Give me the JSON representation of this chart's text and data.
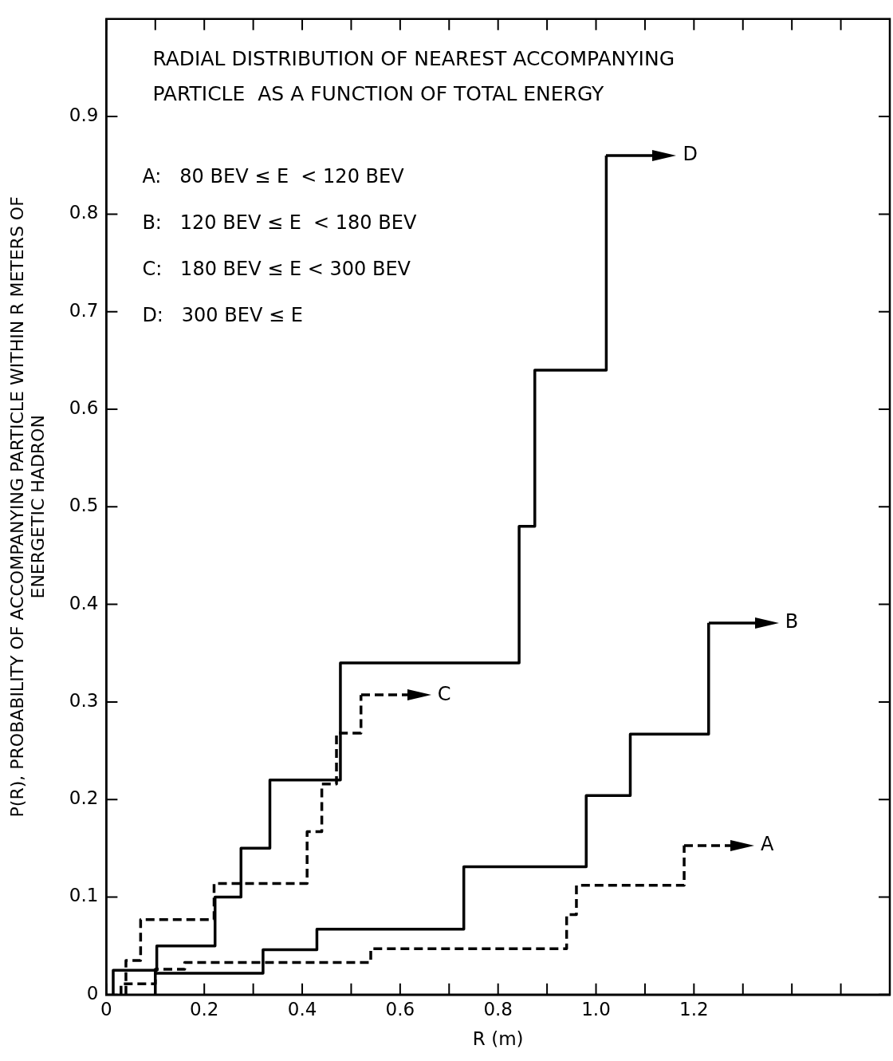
{
  "chart_data": {
    "type": "step",
    "title": "RADIAL DISTRIBUTION OF NEAREST ACCOMPANYING\nPARTICLE  AS A FUNCTION OF TOTAL ENERGY",
    "xlabel": "R (m)",
    "ylabel": "P(R), PROBABILITY OF ACCOMPANYING PARTICLE WITHIN R METERS OF\nENERGETIC HADRON",
    "annotations": [
      "A:   80 BEV ≤ E  < 120 BEV",
      "B:   120 BEV ≤ E  < 180 BEV",
      "C:   180 BEV ≤ E < 300 BEV",
      "D:   300 BEV ≤ E"
    ],
    "series": [
      {
        "name": "A",
        "color": "#000000",
        "line_style": "dashed",
        "x": [
          0.03,
          0.03,
          0.1,
          0.16,
          0.54,
          0.94,
          0.96,
          1.18
        ],
        "values": [
          0,
          0.011,
          0.026,
          0.033,
          0.047,
          0.082,
          0.112,
          0.153
        ]
      },
      {
        "name": "B",
        "color": "#000000",
        "line_style": "solid",
        "x": [
          0.1,
          0.1,
          0.32,
          0.43,
          0.73,
          0.98,
          1.07,
          1.23
        ],
        "values": [
          0,
          0.022,
          0.046,
          0.067,
          0.131,
          0.204,
          0.267,
          0.381
        ]
      },
      {
        "name": "C",
        "color": "#000000",
        "line_style": "dashed",
        "x": [
          0.04,
          0.04,
          0.07,
          0.22,
          0.41,
          0.44,
          0.47,
          0.52
        ],
        "values": [
          0,
          0.035,
          0.077,
          0.114,
          0.167,
          0.216,
          0.268,
          0.307
        ]
      },
      {
        "name": "D",
        "color": "#000000",
        "line_style": "solid",
        "x": [
          0.014,
          0.014,
          0.103,
          0.222,
          0.275,
          0.334,
          0.478,
          0.843,
          0.875,
          1.021
        ],
        "values": [
          0,
          0.025,
          0.05,
          0.1,
          0.15,
          0.22,
          0.34,
          0.48,
          0.64,
          0.86
        ]
      }
    ],
    "xlim": [
      0,
      1.6
    ],
    "ylim": [
      0,
      1.0
    ],
    "xticks": [
      0,
      {
        "value": 0.1,
        "label": null
      },
      0.2,
      {
        "value": 0.3,
        "label": null
      },
      0.4,
      {
        "value": 0.5,
        "label": null
      },
      0.6,
      {
        "value": 0.7,
        "label": null
      },
      0.8,
      {
        "value": 0.9,
        "label": null
      },
      {
        "value": 1.0,
        "label": "1.0"
      },
      {
        "value": 1.1,
        "label": null
      },
      1.2,
      {
        "value": 1.3,
        "label": null
      },
      {
        "value": 1.4,
        "label": null
      },
      {
        "value": 1.5,
        "label": null
      }
    ],
    "yticks": [
      0,
      0.1,
      0.2,
      0.3,
      0.4,
      0.5,
      0.6,
      0.7,
      0.8,
      0.9
    ],
    "grid": false,
    "legend": "top right",
    "marker": "none"
  }
}
